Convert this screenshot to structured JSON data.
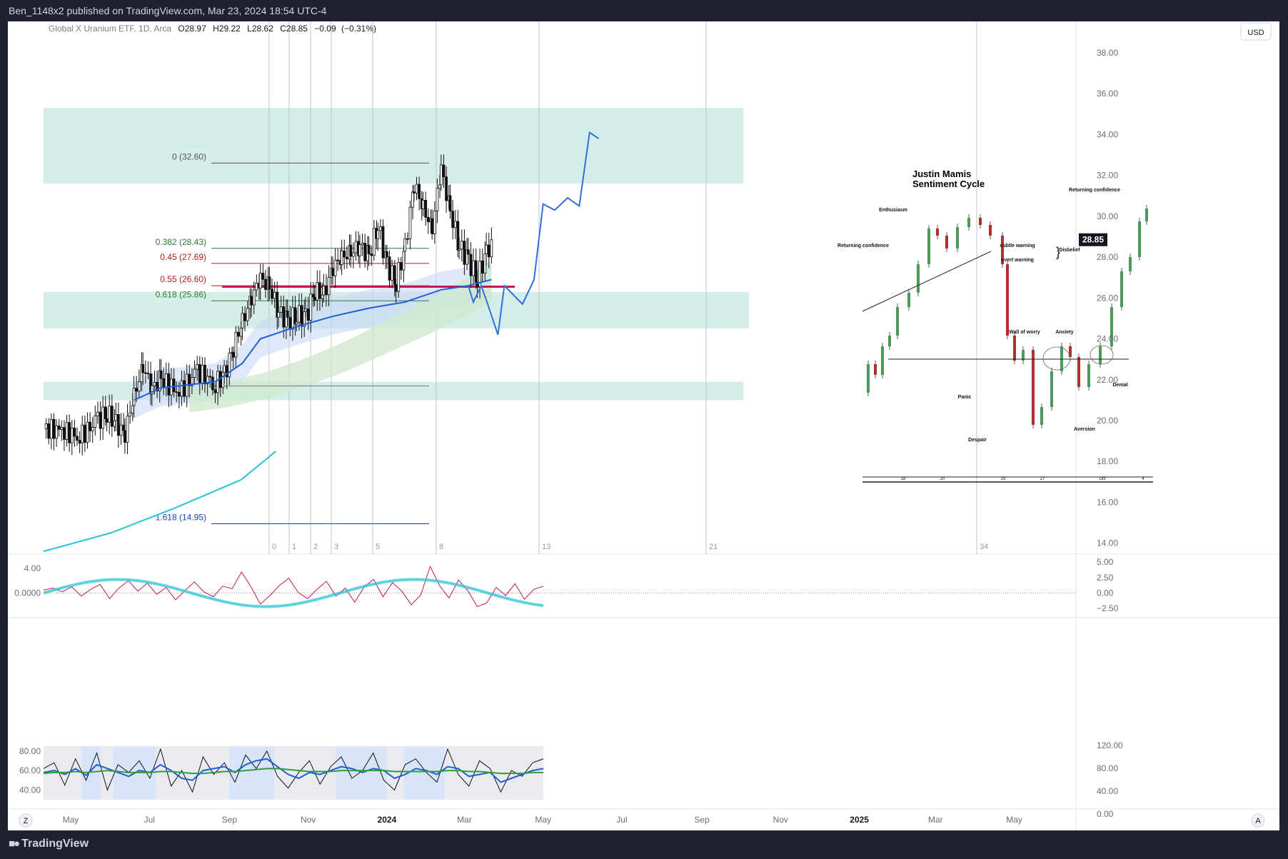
{
  "header": {
    "publish_line": "Ben_1148x2 published on TradingView.com, Mar 23, 2024 18:54 UTC-4"
  },
  "footer": {
    "brand": "TradingView",
    "tz_button": "Z",
    "auto_button": "A"
  },
  "legend": {
    "symbol": "Global X Uranium ETF, 1D, Arca",
    "o_label": "O",
    "o_value": "28.97",
    "h_label": "H",
    "h_value": "29.22",
    "l_label": "L",
    "l_value": "28.62",
    "c_label": "C",
    "c_value": "28.85",
    "change": "−0.09",
    "change_pct": "(−0.31%)"
  },
  "currency": "USD",
  "colors": {
    "zone": "#d6eee9",
    "up": "#26a69a",
    "candle": "#111111",
    "fib_green": "#2e7d32",
    "fib_red": "#b71c1c",
    "fib_blue": "#1a46b0",
    "projection": "#2f6fe0",
    "curve": "#29c3d2",
    "ma": "#1f5fd8",
    "level": "#c2185b",
    "price_tag": "#131722"
  },
  "chart_data": [
    {
      "type": "line",
      "title": "Global X Uranium ETF, 1D, Arca",
      "yaxis": {
        "ticks": [
          "38.00",
          "36.00",
          "34.00",
          "32.00",
          "30.00",
          "28.00",
          "26.00",
          "24.00",
          "22.00",
          "20.00",
          "18.00",
          "16.00",
          "14.00"
        ],
        "ylim": [
          13.5,
          38.8
        ],
        "last_price": 28.85
      },
      "xaxis": {
        "ticks": [
          "May",
          "Jul",
          "Sep",
          "Nov",
          "2024",
          "Mar",
          "May",
          "Jul",
          "Sep",
          "Nov",
          "2025",
          "Mar",
          "May"
        ],
        "range": [
          "2023-04-10",
          "2025-06-20"
        ]
      },
      "cycle_markers": [
        "0",
        "1",
        "2",
        "3",
        "5",
        "8",
        "13",
        "21",
        "34"
      ],
      "fibonacci": [
        {
          "label": "0 (32.60)",
          "price": 32.6,
          "color": "#555555"
        },
        {
          "label": "0.382 (28.43)",
          "price": 28.43,
          "color": "#2e7d32"
        },
        {
          "label": "0.45 (27.69)",
          "price": 27.69,
          "color": "#b71c1c"
        },
        {
          "label": "0.55 (26.60)",
          "price": 26.6,
          "color": "#b71c1c"
        },
        {
          "label": "0.618 (25.86)",
          "price": 25.86,
          "color": "#2e7d32"
        },
        {
          "label": "1.618 (14.95)",
          "price": 14.95,
          "color": "#1a46b0"
        }
      ],
      "zones": [
        {
          "from": 31.6,
          "to": 35.3
        },
        {
          "from": 24.5,
          "to": 26.3
        },
        {
          "from": 21.0,
          "to": 21.9
        }
      ],
      "series": [
        {
          "name": "",
          "kind": "price",
          "points": [
            [
              "2023-04-10",
              19.6
            ],
            [
              "2023-04-24",
              19.5
            ],
            [
              "2023-05-08",
              19.2
            ],
            [
              "2023-05-22",
              20.0
            ],
            [
              "2023-05-29",
              20.4
            ],
            [
              "2023-06-05",
              19.8
            ],
            [
              "2023-06-12",
              19.4
            ],
            [
              "2023-06-19",
              21.2
            ],
            [
              "2023-06-26",
              22.6
            ],
            [
              "2023-07-03",
              21.6
            ],
            [
              "2023-07-10",
              22.0
            ],
            [
              "2023-07-24",
              21.4
            ],
            [
              "2023-08-07",
              22.4
            ],
            [
              "2023-08-21",
              21.8
            ],
            [
              "2023-08-28",
              22.2
            ],
            [
              "2023-09-04",
              23.6
            ],
            [
              "2023-09-11",
              24.8
            ],
            [
              "2023-09-18",
              26.0
            ],
            [
              "2023-09-25",
              27.0
            ],
            [
              "2023-10-02",
              26.5
            ],
            [
              "2023-10-09",
              25.4
            ],
            [
              "2023-10-16",
              24.8
            ],
            [
              "2023-10-23",
              25.2
            ],
            [
              "2023-10-30",
              25.0
            ],
            [
              "2023-11-06",
              26.4
            ],
            [
              "2023-11-13",
              26.1
            ],
            [
              "2023-11-20",
              27.5
            ],
            [
              "2023-11-27",
              28.0
            ],
            [
              "2023-12-04",
              28.2
            ],
            [
              "2023-12-11",
              28.6
            ],
            [
              "2023-12-18",
              28.0
            ],
            [
              "2023-12-25",
              29.6
            ],
            [
              "2024-01-01",
              27.6
            ],
            [
              "2024-01-08",
              26.8
            ],
            [
              "2024-01-15",
              28.4
            ],
            [
              "2024-01-22",
              31.6
            ],
            [
              "2024-01-29",
              30.4
            ],
            [
              "2024-02-05",
              29.4
            ],
            [
              "2024-02-12",
              32.4
            ],
            [
              "2024-02-19",
              30.2
            ],
            [
              "2024-02-26",
              28.6
            ],
            [
              "2024-03-04",
              27.8
            ],
            [
              "2024-03-11",
              27.0
            ],
            [
              "2024-03-18",
              28.1
            ],
            [
              "2024-03-22",
              28.85
            ]
          ]
        },
        {
          "name": "",
          "kind": "moving-average",
          "points": [
            [
              "2023-06-19",
              21.0
            ],
            [
              "2023-07-10",
              21.6
            ],
            [
              "2023-08-21",
              21.9
            ],
            [
              "2023-09-11",
              22.8
            ],
            [
              "2023-09-25",
              24.0
            ],
            [
              "2023-10-23",
              24.6
            ],
            [
              "2023-11-20",
              25.1
            ],
            [
              "2023-12-18",
              25.5
            ],
            [
              "2024-01-15",
              25.8
            ],
            [
              "2024-02-12",
              26.4
            ],
            [
              "2024-03-04",
              26.6
            ],
            [
              "2024-03-22",
              26.9
            ]
          ]
        },
        {
          "name": "",
          "kind": "projection",
          "points": [
            [
              "2024-03-04",
              26.6
            ],
            [
              "2024-03-08",
              25.8
            ],
            [
              "2024-03-14",
              26.6
            ],
            [
              "2024-03-18",
              25.9
            ],
            [
              "2024-03-27",
              24.2
            ],
            [
              "2024-04-01",
              26.6
            ],
            [
              "2024-04-15",
              25.7
            ],
            [
              "2024-04-24",
              26.9
            ],
            [
              "2024-05-01",
              30.6
            ],
            [
              "2024-05-10",
              30.3
            ],
            [
              "2024-05-20",
              30.9
            ],
            [
              "2024-05-29",
              30.5
            ],
            [
              "2024-06-06",
              34.1
            ],
            [
              "2024-06-13",
              33.8
            ]
          ]
        },
        {
          "name": "",
          "kind": "curve",
          "points": [
            [
              "2023-04-10",
              13.6
            ],
            [
              "2023-06-01",
              14.5
            ],
            [
              "2023-07-20",
              15.7
            ],
            [
              "2023-09-10",
              17.1
            ],
            [
              "2023-10-07",
              18.5
            ]
          ]
        }
      ],
      "annotation": {
        "title_line1": "Justin Mamis",
        "title_line2": "Sentiment Cycle",
        "labels": [
          "Enthusiasm",
          "Returning confidence",
          "subtle warning",
          "overt warning",
          "Disbelief",
          "Wall of worry",
          "Anxiety",
          "Panic",
          "Denial",
          "Despair",
          "Aversion",
          "Returning confidence"
        ],
        "axis_ticks": [
          "18",
          "20",
          "25",
          "27",
          "Oct",
          "4"
        ]
      }
    },
    {
      "type": "line",
      "title": "",
      "yaxis": {
        "ticks": [
          "5.00",
          "2.50",
          "0.00",
          "−2.50"
        ],
        "left_ticks": [
          "4.00",
          "0.0000"
        ],
        "ylim": [
          -3.4,
          5.6
        ]
      },
      "series": [
        {
          "name": "",
          "points": [
            0.5,
            0.8,
            0.2,
            1.0,
            -0.5,
            0.6,
            1.4,
            -0.9,
            0.8,
            2.0,
            0.3,
            1.6,
            -0.2,
            0.9,
            -1.1,
            0.4,
            1.8,
            0.2,
            -0.6,
            1.1,
            0.7,
            3.4,
            1.0,
            -1.8,
            -0.4,
            1.2,
            2.4,
            0.1,
            -0.9,
            0.6,
            1.9,
            -0.5,
            0.8,
            -1.5,
            1.0,
            2.2,
            -0.6,
            1.7,
            0.3,
            -1.9,
            -0.3,
            4.3,
            1.2,
            -0.8,
            2.1,
            0.4,
            -2.2,
            -1.6,
            0.9,
            -0.4,
            1.5,
            -1.0,
            0.6,
            1.1
          ]
        }
      ]
    },
    {
      "type": "line",
      "title": "",
      "yaxis": {
        "ticks": [
          "120.00",
          "80.00",
          "40.00",
          "0.00"
        ],
        "left_ticks": [
          "80.00",
          "60.00",
          "40.00"
        ],
        "ylim": [
          30,
          85
        ]
      },
      "series": [
        {
          "name": "",
          "points": [
            62,
            68,
            45,
            72,
            50,
            78,
            40,
            66,
            58,
            70,
            52,
            82,
            44,
            60,
            38,
            74,
            56,
            68,
            48,
            76,
            62,
            80,
            54,
            42,
            58,
            70,
            46,
            64,
            74,
            52,
            60,
            78,
            50,
            40,
            66,
            72,
            58,
            48,
            82,
            56,
            44,
            70,
            62,
            38,
            60,
            54,
            68,
            72
          ]
        },
        {
          "name": "",
          "points": [
            58,
            60,
            56,
            62,
            55,
            66,
            62,
            58,
            54,
            60,
            58,
            66,
            60,
            52,
            50,
            60,
            62,
            64,
            58,
            66,
            70,
            72,
            64,
            56,
            52,
            58,
            56,
            60,
            64,
            62,
            58,
            62,
            60,
            52,
            56,
            62,
            60,
            56,
            64,
            62,
            54,
            56,
            58,
            48,
            52,
            56,
            60,
            62
          ]
        },
        {
          "name": "",
          "points": [
            57,
            58,
            58,
            59,
            58,
            59,
            60,
            59,
            58,
            58,
            58,
            59,
            59,
            58,
            57,
            57,
            58,
            59,
            59,
            60,
            61,
            62,
            62,
            61,
            60,
            59,
            59,
            59,
            60,
            60,
            60,
            60,
            60,
            59,
            59,
            59,
            59,
            59,
            60,
            60,
            59,
            59,
            58,
            57,
            57,
            57,
            58,
            58
          ]
        }
      ]
    }
  ]
}
